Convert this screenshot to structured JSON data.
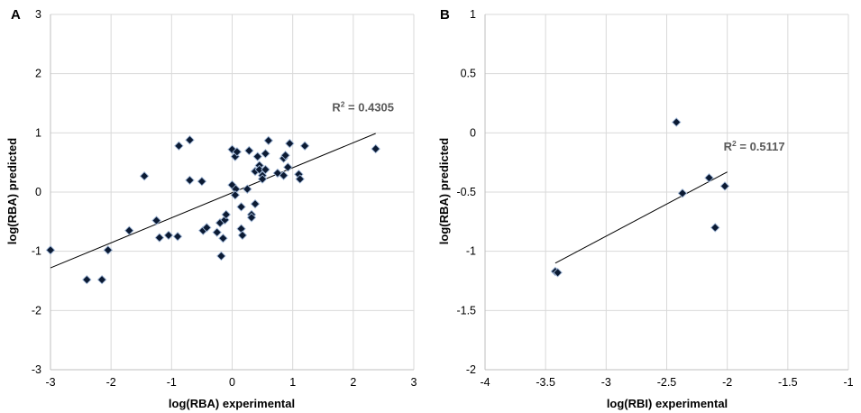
{
  "chart_data": [
    {
      "panel": "A",
      "type": "scatter",
      "xlabel": "log(RBA) experimental",
      "ylabel": "log(RBA) predicted",
      "xlim": [
        -3,
        3
      ],
      "ylim": [
        -3,
        3
      ],
      "xticks": [
        -3,
        -2,
        -1,
        0,
        1,
        2,
        3
      ],
      "yticks": [
        -3,
        -2,
        -1,
        0,
        1,
        2,
        3
      ],
      "grid": true,
      "trendline": {
        "x1": -3.0,
        "y1": -1.28,
        "x2": 2.37,
        "y2": 0.99
      },
      "r2_label": {
        "prefix": "R",
        "superscript": "2",
        "value": " = 0.4305",
        "x": 1.65,
        "y": 1.36
      },
      "points": [
        [
          -3.0,
          -0.98
        ],
        [
          -2.4,
          -1.48
        ],
        [
          -2.15,
          -1.48
        ],
        [
          -2.05,
          -0.98
        ],
        [
          -1.7,
          -0.65
        ],
        [
          -1.45,
          0.27
        ],
        [
          -1.25,
          -0.48
        ],
        [
          -1.2,
          -0.77
        ],
        [
          -1.05,
          -0.73
        ],
        [
          -0.9,
          -0.75
        ],
        [
          -0.88,
          0.78
        ],
        [
          -0.7,
          0.88
        ],
        [
          -0.7,
          0.2
        ],
        [
          -0.5,
          0.18
        ],
        [
          -0.48,
          -0.65
        ],
        [
          -0.42,
          -0.6
        ],
        [
          -0.25,
          -0.68
        ],
        [
          -0.2,
          -0.52
        ],
        [
          -0.18,
          -1.08
        ],
        [
          -0.15,
          -0.78
        ],
        [
          -0.12,
          -0.47
        ],
        [
          -0.1,
          -0.38
        ],
        [
          0.0,
          0.72
        ],
        [
          0.0,
          0.12
        ],
        [
          0.05,
          0.6
        ],
        [
          0.06,
          0.05
        ],
        [
          0.08,
          0.68
        ],
        [
          0.05,
          -0.05
        ],
        [
          0.15,
          -0.25
        ],
        [
          0.15,
          -0.62
        ],
        [
          0.17,
          -0.73
        ],
        [
          0.25,
          0.05
        ],
        [
          0.28,
          0.7
        ],
        [
          0.32,
          -0.38
        ],
        [
          0.32,
          -0.43
        ],
        [
          0.38,
          0.35
        ],
        [
          0.38,
          -0.2
        ],
        [
          0.42,
          0.6
        ],
        [
          0.45,
          0.45
        ],
        [
          0.45,
          0.38
        ],
        [
          0.5,
          0.28
        ],
        [
          0.5,
          0.22
        ],
        [
          0.55,
          0.38
        ],
        [
          0.55,
          0.65
        ],
        [
          0.6,
          0.87
        ],
        [
          0.75,
          0.32
        ],
        [
          0.85,
          0.28
        ],
        [
          0.85,
          0.57
        ],
        [
          0.88,
          0.62
        ],
        [
          0.92,
          0.42
        ],
        [
          0.95,
          0.82
        ],
        [
          1.1,
          0.3
        ],
        [
          1.12,
          0.22
        ],
        [
          1.2,
          0.78
        ],
        [
          2.37,
          0.73
        ]
      ]
    },
    {
      "panel": "B",
      "type": "scatter",
      "xlabel": "log(RBI) experimental",
      "ylabel": "log(RBA) predicted",
      "xlim": [
        -4,
        -1
      ],
      "ylim": [
        -2,
        1
      ],
      "xticks": [
        -4,
        -3.5,
        -3,
        -2.5,
        -2,
        -1.5,
        -1
      ],
      "yticks": [
        -2,
        -1.5,
        -1,
        -0.5,
        0,
        0.5,
        1
      ],
      "grid": true,
      "trendline": {
        "x1": -3.42,
        "y1": -1.1,
        "x2": -2.0,
        "y2": -0.33
      },
      "r2_label": {
        "prefix": "R",
        "superscript": "2",
        "value": " = 0.5117",
        "x": -2.03,
        "y": -0.15
      },
      "points": [
        [
          -3.42,
          -1.17
        ],
        [
          -3.4,
          -1.18
        ],
        [
          -2.42,
          0.09
        ],
        [
          -2.37,
          -0.51
        ],
        [
          -2.15,
          -0.38
        ],
        [
          -2.1,
          -0.8
        ],
        [
          -2.02,
          -0.45
        ]
      ]
    }
  ],
  "panels": [
    {
      "letter": "A"
    },
    {
      "letter": "B"
    }
  ]
}
